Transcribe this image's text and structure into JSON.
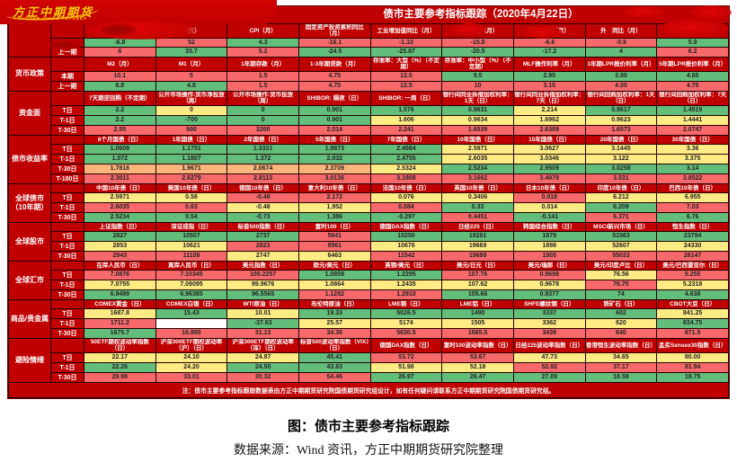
{
  "title": "债市主要参考指标跟踪（2020年4月22日）",
  "logo": {
    "name": "方正中期期货",
    "subtitle": "FOUNDER CIFCO FUTURES"
  },
  "color_scale": {
    "g": "#63be7b",
    "y": "#ffeb84",
    "o": "#fdb57c",
    "r": "#f8696b",
    "w": "#ffffff"
  },
  "header_color": "#c00000",
  "table": {
    "bands": [
      {
        "group": "",
        "headers": [
          "",
          "（月）",
          "CPI（月）",
          "固定资产投资累积同比（月）",
          "工业增加值同比（月）",
          "消费同比（月）",
          "外　同比（月）",
          "外　同比（月）",
          "（月）"
        ],
        "rows": [
          {
            "label": "",
            "values": [
              "-6.8",
              "52",
              "4.3",
              "-16.1",
              "-1.10",
              "-15.8",
              "-6.6",
              "-0.9",
              "5.9"
            ],
            "colors": [
              "g",
              "r",
              "g",
              "r",
              "r",
              "r",
              "r",
              "r",
              "g"
            ]
          },
          {
            "label": "上一期",
            "values": [
              "6",
              "35.7",
              "5.2",
              "-24.5",
              "-25.87",
              "-20.5",
              "-17.2",
              "4",
              "6.2"
            ],
            "colors": [
              "r",
              "g",
              "r",
              "g",
              "g",
              "g",
              "g",
              "g",
              "r"
            ]
          }
        ]
      },
      {
        "group": "货币政策",
        "headers": [
          "M2（月）",
          "M1（月）",
          "1年期存款（月）",
          "1-3年期贷款（月）",
          "存准率：大型（%）（不定期）",
          "存准率：中小型（%）（不定期）",
          "MLF操作利率（月）",
          "1年期LPR报价利率（月）",
          "5年期LPR报价利率（月）"
        ],
        "rows": [
          {
            "label": "本期",
            "values": [
              "10.1",
              "5",
              "1.5",
              "4.75",
              "12.5",
              "9.5",
              "2.95",
              "3.85",
              "4.65"
            ],
            "colors": [
              "r",
              "r",
              "r",
              "r",
              "r",
              "g",
              "g",
              "g",
              "g"
            ]
          },
          {
            "label": "上一期",
            "values": [
              "8.8",
              "4.8",
              "1.5",
              "4.75",
              "12.5",
              "10",
              "3.15",
              "4.05",
              "4.75"
            ],
            "colors": [
              "g",
              "g",
              "r",
              "r",
              "r",
              "r",
              "r",
              "r",
              "r"
            ]
          }
        ]
      },
      {
        "group": "资金面",
        "headers": [
          "7天期逆回购（不定期）",
          "公开市场操作:货币净投放（周）",
          "公开市场操作:货币投放（周）",
          "SHIBOR: 隔夜（日）",
          "SHIBOR: 一周（日）",
          "银行间同业拆借加权利率：1天（日）",
          "银行间同业拆借加权利率：7天（日）",
          "银行间回购加权利率：1天（日）",
          "银行间回购加权利率：7天（日）"
        ],
        "rows": [
          {
            "label": "T日",
            "values": [
              "2.2",
              "0",
              "0",
              "0.901",
              "1.576",
              "0.9631",
              "2.214",
              "0.9617",
              "1.4519"
            ],
            "colors": [
              "g",
              "y",
              "g",
              "g",
              "g",
              "g",
              "y",
              "g",
              "g"
            ]
          },
          {
            "label": "T-1日",
            "values": [
              "2.2",
              "-700",
              "0",
              "0.901",
              "1.606",
              "0.9634",
              "1.6962",
              "0.9623",
              "1.4441"
            ],
            "colors": [
              "g",
              "g",
              "g",
              "g",
              "y",
              "y",
              "y",
              "y",
              "y"
            ]
          },
          {
            "label": "T-30日",
            "values": [
              "2.55",
              "900",
              "3200",
              "2.014",
              "2.241",
              "1.6539",
              "2.6389",
              "1.6573",
              "2.0747"
            ],
            "colors": [
              "r",
              "r",
              "r",
              "r",
              "r",
              "r",
              "r",
              "r",
              "r"
            ]
          }
        ]
      },
      {
        "group": "债市收益率",
        "headers": [
          "6个月国债（日）",
          "1年国债（日）",
          "2年国债（日）",
          "5年国债（日）",
          "7年国债（日）",
          "10年国债（日）",
          "15年国债（日）",
          "20年国债（日）",
          "30年国债（日）"
        ],
        "rows": [
          {
            "label": "T日",
            "values": [
              "1.0609",
              "1.1751",
              "1.3331",
              "1.9873",
              "2.4684",
              "2.5971",
              "3.0627",
              "3.1445",
              "3.36"
            ],
            "colors": [
              "g",
              "g",
              "g",
              "g",
              "g",
              "y",
              "y",
              "y",
              "y"
            ]
          },
          {
            "label": "T-1日",
            "values": [
              "1.072",
              "1.1807",
              "1.372",
              "2.032",
              "2.4755",
              "2.6035",
              "3.0346",
              "3.122",
              "3.375"
            ],
            "colors": [
              "g",
              "g",
              "g",
              "g",
              "g",
              "y",
              "y",
              "y",
              "y"
            ]
          },
          {
            "label": "T-30日",
            "values": [
              "1.7816",
              "1.9671",
              "2.0674",
              "2.3709",
              "2.5324",
              "2.5234",
              "2.9509",
              "3.0258",
              "3.14"
            ],
            "colors": [
              "o",
              "o",
              "o",
              "o",
              "y",
              "g",
              "g",
              "g",
              "g"
            ]
          },
          {
            "label": "T-180日",
            "values": [
              "2.3011",
              "2.6279",
              "2.8113",
              "3.0136",
              "3.1808",
              "3.1662",
              "3.4979",
              "3.531",
              "3.8522"
            ],
            "colors": [
              "r",
              "r",
              "r",
              "r",
              "r",
              "r",
              "r",
              "r",
              "r"
            ]
          }
        ]
      },
      {
        "group": "全球债市（10年期）",
        "headers": [
          "中国10年债（日）",
          "美国10年债（日）",
          "德国10年债（日）",
          "意大利10年债（日）",
          "法国10年债（日）",
          "英国10年债（日）",
          "日本10年债（日）",
          "印度10年债（日）",
          "巴西10年债（日）"
        ],
        "rows": [
          {
            "label": "T日",
            "values": [
              "2.5971",
              "0.58",
              "-0.46",
              "2.172",
              "0.076",
              "0.3406",
              "0.018",
              "6.212",
              "6.955"
            ],
            "colors": [
              "y",
              "y",
              "r",
              "r",
              "y",
              "y",
              "r",
              "y",
              "y"
            ]
          },
          {
            "label": "T-1日",
            "values": [
              "2.6035",
              "0.63",
              "-0.48",
              "1.952",
              "0.084",
              "0.33",
              "0.014",
              "6.209",
              "7.03"
            ],
            "colors": [
              "r",
              "r",
              "y",
              "y",
              "r",
              "g",
              "y",
              "g",
              "r"
            ]
          },
          {
            "label": "T-30日",
            "values": [
              "2.5234",
              "0.54",
              "-0.73",
              "1.386",
              "-0.297",
              "0.4451",
              "-0.141",
              "6.371",
              "6.76"
            ],
            "colors": [
              "g",
              "g",
              "g",
              "g",
              "g",
              "r",
              "g",
              "r",
              "g"
            ]
          }
        ]
      },
      {
        "group": "全球股市",
        "headers": [
          "上证指数（日）",
          "深证成指（日）",
          "标普500指数（日）",
          "富时100（日）",
          "德国DAX指数（日）",
          "日经225（日）",
          "韩国综合指数（日）",
          "MSCI新兴市场（日）",
          "恒生指数（日）"
        ],
        "rows": [
          {
            "label": "T日",
            "values": [
              "2827",
              "10507",
              "2737",
              "5641",
              "10250",
              "19281",
              "1879",
              "51563",
              "23794"
            ],
            "colors": [
              "g",
              "g",
              "g",
              "r",
              "g",
              "g",
              "g",
              "g",
              "g"
            ]
          },
          {
            "label": "T-1日",
            "values": [
              "2853",
              "10621",
              "2823",
              "8561",
              "10676",
              "19669",
              "1898",
              "52607",
              "24330"
            ],
            "colors": [
              "y",
              "y",
              "r",
              "r",
              "y",
              "y",
              "y",
              "y",
              "y"
            ]
          },
          {
            "label": "T-30日",
            "values": [
              "2943",
              "11109",
              "2747",
              "6463",
              "11542",
              "19699",
              "1955",
              "55033",
              "26147"
            ],
            "colors": [
              "r",
              "r",
              "y",
              "y",
              "r",
              "r",
              "r",
              "r",
              "r"
            ]
          }
        ]
      },
      {
        "group": "全球汇市",
        "headers": [
          "在岸人民币（日）",
          "离岸人民币（日）",
          "美元指数（日）",
          "欧元/美元（日）",
          "英镑/美元（日）",
          "美元/日元（日）",
          "美元/瑞郎（日）",
          "美元/印度卢比（日）",
          "美元/巴西雷亚尔（日）"
        ],
        "rows": [
          {
            "label": "T日",
            "values": [
              "7.0876",
              "7.10345",
              "100.2257",
              "1.0859",
              "1.2295",
              "107.76",
              "0.9698",
              "76.56",
              "5.255"
            ],
            "colors": [
              "r",
              "r",
              "r",
              "g",
              "g",
              "r",
              "r",
              "y",
              "r"
            ]
          },
          {
            "label": "T-1日",
            "values": [
              "7.0755",
              "7.09095",
              "99.9676",
              "1.0864",
              "1.2435",
              "107.62",
              "0.9678",
              "76.75",
              "5.2318"
            ],
            "colors": [
              "y",
              "y",
              "y",
              "y",
              "y",
              "y",
              "y",
              "r",
              "y"
            ]
          },
          {
            "label": "T-30日",
            "values": [
              "6.9499",
              "6.96385",
              "96.5565",
              "1.1282",
              "1.2910",
              "105.66",
              "0.9377",
              "74",
              "4.638"
            ],
            "colors": [
              "g",
              "g",
              "g",
              "r",
              "r",
              "g",
              "g",
              "g",
              "g"
            ]
          }
        ]
      },
      {
        "group": "商品/贵金属",
        "headers": [
          "COMEX黄金（日）",
          "COMEX白银（日）",
          "WTI原油（日）",
          "布伦特原油（日）",
          "LME铜（日）",
          "LME铝（日）",
          "SHFE螺纹钢（日）",
          "铁矿石（日）",
          "CBOT大豆（日）"
        ],
        "rows": [
          {
            "label": "T日",
            "values": [
              "1687.8",
              "15.43",
              "10.01",
              "19.33",
              "5026.5",
              "1490",
              "3337",
              "602",
              "841.25"
            ],
            "colors": [
              "y",
              "g",
              "y",
              "g",
              "g",
              "g",
              "g",
              "g",
              "y"
            ]
          },
          {
            "label": "T-1日",
            "values": [
              "1711.2",
              "",
              "-37.63",
              "25.57",
              "5174",
              "1505",
              "3362",
              "620",
              "834.75"
            ],
            "colors": [
              "r",
              "w",
              "g",
              "y",
              "y",
              "y",
              "y",
              "y",
              "g"
            ]
          },
          {
            "label": "T-30日",
            "values": [
              "1675.7",
              "16.885",
              "31.13",
              "34.36",
              "5630.5",
              "1685.5",
              "3439",
              "640",
              "871.5"
            ],
            "colors": [
              "g",
              "r",
              "r",
              "r",
              "r",
              "r",
              "r",
              "r",
              "r"
            ]
          }
        ]
      },
      {
        "group": "避险情绪",
        "headers": [
          "50ETF期权波动率指数（日）",
          "沪深300ETF期权波动率（沪）（日）",
          "沪深300ETF期权波动率（深）（日）",
          "标普500波动率指数（VIX）（日）",
          "德国DAX指数（日）",
          "富时100波动率指数（日）",
          "日经225波动率指数（日）",
          "香港恒生波动率指数（日）",
          "孟买Sensex30指数（日）"
        ],
        "rows": [
          {
            "label": "T日",
            "values": [
              "22.17",
              "24.10",
              "24.87",
              "45.41",
              "53.72",
              "53.67",
              "47.73",
              "34.65",
              "80.00"
            ],
            "colors": [
              "y",
              "y",
              "y",
              "g",
              "r",
              "r",
              "y",
              "y",
              "y"
            ]
          },
          {
            "label": "T-1日",
            "values": [
              "22.26",
              "24.20",
              "24.55",
              "43.83",
              "51.98",
              "52.18",
              "52.92",
              "37.17",
              "81.94"
            ],
            "colors": [
              "g",
              "y",
              "g",
              "g",
              "y",
              "y",
              "r",
              "r",
              "r"
            ]
          },
          {
            "label": "T-30日",
            "values": [
              "29.99",
              "33.01",
              "30.32",
              "54.46",
              "26.97",
              "26.47",
              "27.09",
              "18.58",
              "19.75"
            ],
            "colors": [
              "r",
              "r",
              "r",
              "r",
              "g",
              "g",
              "g",
              "g",
              "g"
            ]
          }
        ]
      }
    ]
  },
  "note": "注：债市主要参考指标跟踪数据表由方正中期期货研究院国债期货研究组设计，如有任何疑问请联系方正中期期货研究院国债期货研究组。",
  "caption": "图：债市主要参考指标跟踪",
  "source": "数据来源：Wind 资讯，方正中期期货研究院整理"
}
